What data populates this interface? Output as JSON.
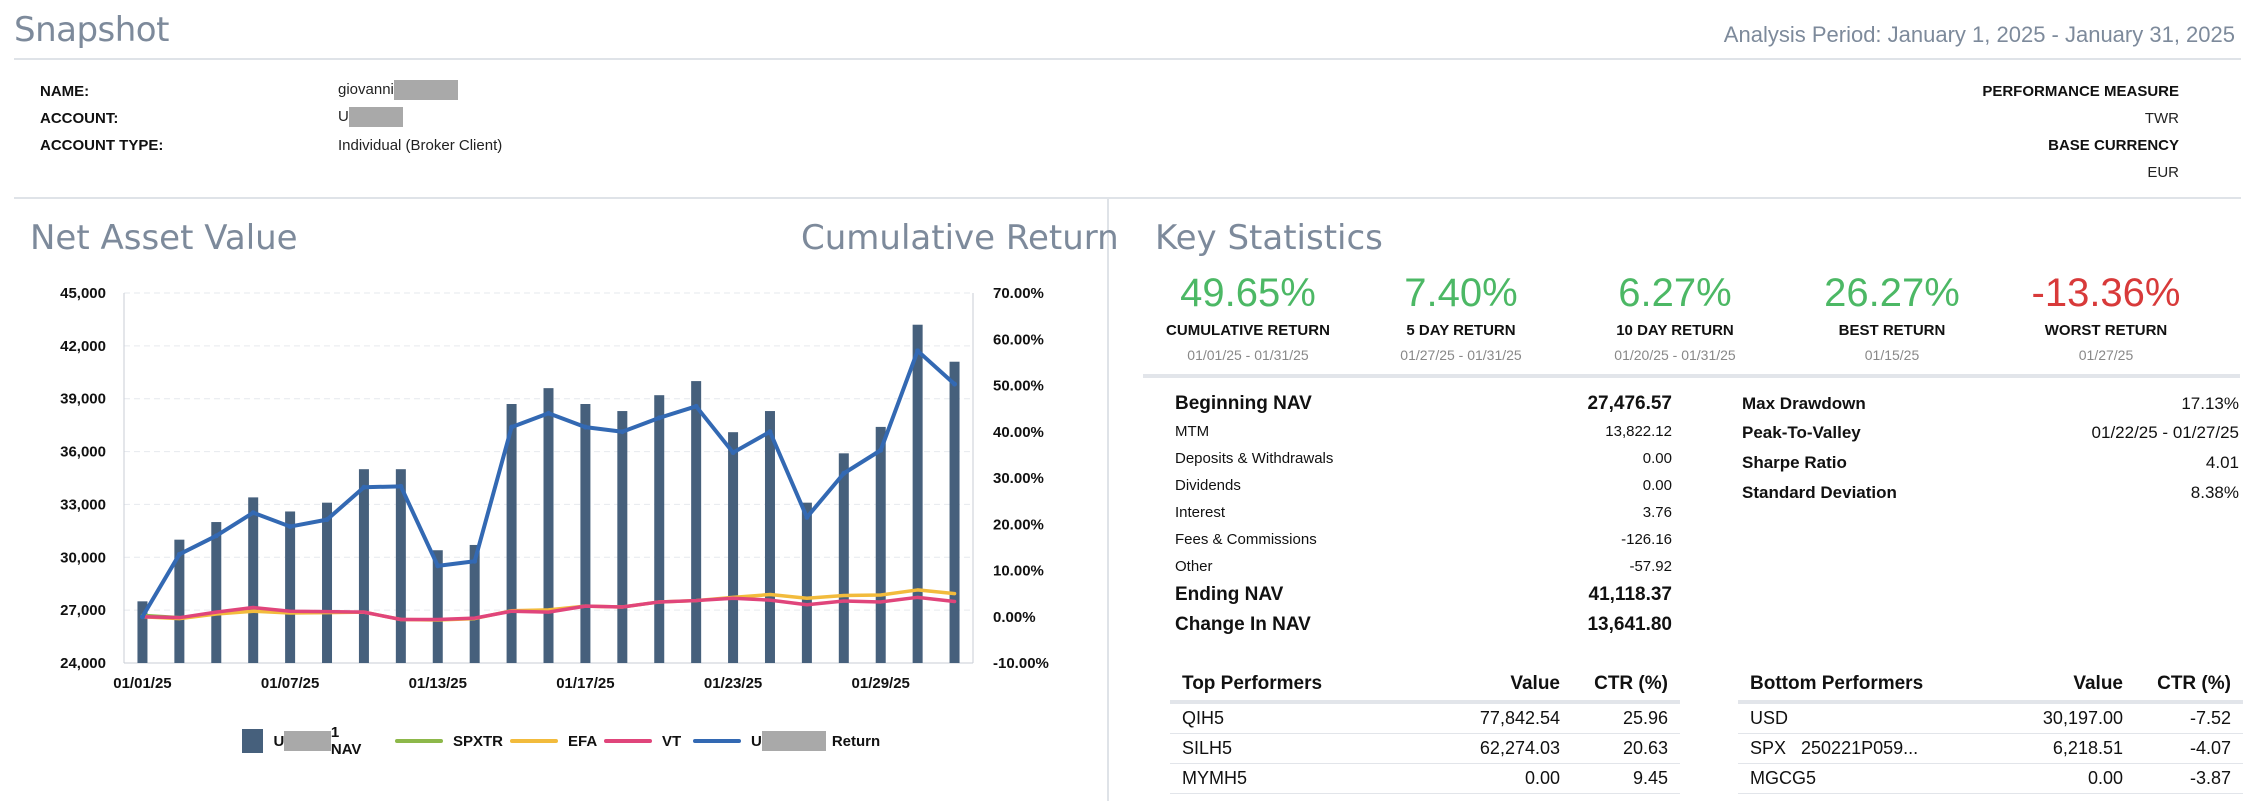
{
  "header": {
    "title": "Snapshot",
    "analysis_period": "Analysis Period: January 1, 2025 - January 31, 2025"
  },
  "account": {
    "name_label": "NAME:",
    "name_value": "giovanni",
    "account_label": "ACCOUNT:",
    "account_value": "U",
    "type_label": "ACCOUNT TYPE:",
    "type_value": "Individual (Broker Client)",
    "perf_measure_label": "PERFORMANCE MEASURE",
    "perf_measure_value": "TWR",
    "base_currency_label": "BASE CURRENCY",
    "base_currency_value": "EUR"
  },
  "nav_section": {
    "title": "Net Asset Value",
    "right_title": "Cumulative Return"
  },
  "chart_data": {
    "type": "bar",
    "title": "Net Asset Value",
    "y_left_ticks": [
      "45,000",
      "42,000",
      "39,000",
      "36,000",
      "33,000",
      "30,000",
      "27,000",
      "24,000"
    ],
    "y_right_ticks": [
      "70.00%",
      "60.00%",
      "50.00%",
      "40.00%",
      "30.00%",
      "20.00%",
      "10.00%",
      "0.00%",
      "-10.00%"
    ],
    "x_ticks": [
      "01/01/25",
      "01/07/25",
      "01/13/25",
      "01/17/25",
      "01/23/25",
      "01/29/25"
    ],
    "ylim_left": [
      24000,
      45000
    ],
    "ylim_right": [
      -10,
      70
    ],
    "categories": [
      "01/01/25",
      "01/02/25",
      "01/03/25",
      "01/06/25",
      "01/07/25",
      "01/08/25",
      "01/09/25",
      "01/10/25",
      "01/13/25",
      "01/14/25",
      "01/15/25",
      "01/16/25",
      "01/17/25",
      "01/20/25",
      "01/21/25",
      "01/22/25",
      "01/23/25",
      "01/24/25",
      "01/27/25",
      "01/28/25",
      "01/29/25",
      "01/30/25",
      "01/31/25"
    ],
    "series": [
      {
        "name": "NAV",
        "kind": "bar",
        "axis": "left",
        "color": "#46607c",
        "values": [
          27500,
          31000,
          32000,
          33400,
          32600,
          33100,
          35000,
          35000,
          30400,
          30700,
          38700,
          39600,
          38700,
          38300,
          39200,
          40000,
          37100,
          38300,
          33100,
          35900,
          37400,
          43200,
          41100
        ]
      },
      {
        "name": "SPXTR",
        "kind": "line",
        "axis": "right",
        "color": "#8db84a",
        "values": [
          0.3,
          -0.2,
          null,
          null,
          null,
          null,
          null,
          null,
          null,
          null,
          null,
          null,
          null,
          null,
          null,
          null,
          null,
          null,
          null,
          null,
          null,
          null,
          null
        ]
      },
      {
        "name": "EFA",
        "kind": "line",
        "axis": "right",
        "color": "#f2bb3c",
        "values": [
          0.0,
          -0.4,
          0.6,
          1.2,
          0.8,
          0.9,
          1.0,
          -0.6,
          -0.7,
          -0.4,
          1.3,
          1.5,
          2.3,
          2.1,
          3.2,
          3.5,
          4.2,
          4.8,
          4.0,
          4.6,
          4.7,
          5.8,
          5.0
        ]
      },
      {
        "name": "VT",
        "kind": "line",
        "axis": "right",
        "color": "#e0457b",
        "values": [
          0.0,
          -0.2,
          1.0,
          2.0,
          1.2,
          1.1,
          1.0,
          -0.6,
          -0.6,
          -0.3,
          1.2,
          1.0,
          2.3,
          2.1,
          3.2,
          3.5,
          4.0,
          3.6,
          2.6,
          3.4,
          3.2,
          4.2,
          3.3
        ]
      },
      {
        "name": "Return",
        "kind": "line",
        "axis": "right",
        "color": "#3369b3",
        "values": [
          0.0,
          13.5,
          17.5,
          22.5,
          19.5,
          21.0,
          28.0,
          28.2,
          11.0,
          12.0,
          41.0,
          44.0,
          41.0,
          40.0,
          43.0,
          45.5,
          35.5,
          40.0,
          21.5,
          31.0,
          36.0,
          57.5,
          50.3
        ]
      }
    ],
    "x_label_indices": [
      0,
      4,
      8,
      12,
      16,
      20
    ]
  },
  "legend": {
    "nav_prefix": "U",
    "nav_suffix": "1 NAV",
    "spxtr": "SPXTR",
    "efa": "EFA",
    "vt": "VT",
    "return_prefix": "U",
    "return_suffix": "Return"
  },
  "key_stats": {
    "title": "Key Statistics",
    "kpis": [
      {
        "value": "49.65%",
        "label": "CUMULATIVE RETURN",
        "date": "01/01/25 - 01/31/25",
        "color": "#4cb865"
      },
      {
        "value": "7.40%",
        "label": "5 DAY RETURN",
        "date": "01/27/25 - 01/31/25",
        "color": "#4cb865"
      },
      {
        "value": "6.27%",
        "label": "10 DAY RETURN",
        "date": "01/20/25 - 01/31/25",
        "color": "#4cb865"
      },
      {
        "value": "26.27%",
        "label": "BEST RETURN",
        "date": "01/15/25",
        "color": "#4cb865"
      },
      {
        "value": "-13.36%",
        "label": "WORST RETURN",
        "date": "01/27/25",
        "color": "#d83a3a"
      }
    ],
    "nav_breakdown": {
      "beginning_label": "Beginning NAV",
      "beginning_value": "27,476.57",
      "mtm_label": "MTM",
      "mtm_value": "13,822.12",
      "deposits_label": "Deposits & Withdrawals",
      "deposits_value": "0.00",
      "dividends_label": "Dividends",
      "dividends_value": "0.00",
      "interest_label": "Interest",
      "interest_value": "3.76",
      "fees_label": "Fees & Commissions",
      "fees_value": "-126.16",
      "other_label": "Other",
      "other_value": "-57.92",
      "ending_label": "Ending NAV",
      "ending_value": "41,118.37",
      "change_label": "Change In NAV",
      "change_value": "13,641.80"
    },
    "risk": {
      "drawdown_label": "Max Drawdown",
      "drawdown_value": "17.13%",
      "ptv_label": "Peak-To-Valley",
      "ptv_value": "01/22/25 - 01/27/25",
      "sharpe_label": "Sharpe Ratio",
      "sharpe_value": "4.01",
      "stdev_label": "Standard Deviation",
      "stdev_value": "8.38%"
    }
  },
  "top_performers": {
    "headers": {
      "name": "Top Performers",
      "value": "Value",
      "ctr": "CTR (%)"
    },
    "rows": [
      {
        "name": "QIH5",
        "value": "77,842.54",
        "ctr": "25.96"
      },
      {
        "name": "SILH5",
        "value": "62,274.03",
        "ctr": "20.63"
      },
      {
        "name": "MYMH5",
        "value": "0.00",
        "ctr": "9.45"
      }
    ]
  },
  "bottom_performers": {
    "headers": {
      "name": "Bottom Performers",
      "value": "Value",
      "ctr": "CTR (%)"
    },
    "rows": [
      {
        "name": "USD",
        "value": "30,197.00",
        "ctr": "-7.52"
      },
      {
        "name": "SPX   250221P059...",
        "value": "6,218.51",
        "ctr": "-4.07"
      },
      {
        "name": "MGCG5",
        "value": "0.00",
        "ctr": "-3.87"
      }
    ]
  }
}
